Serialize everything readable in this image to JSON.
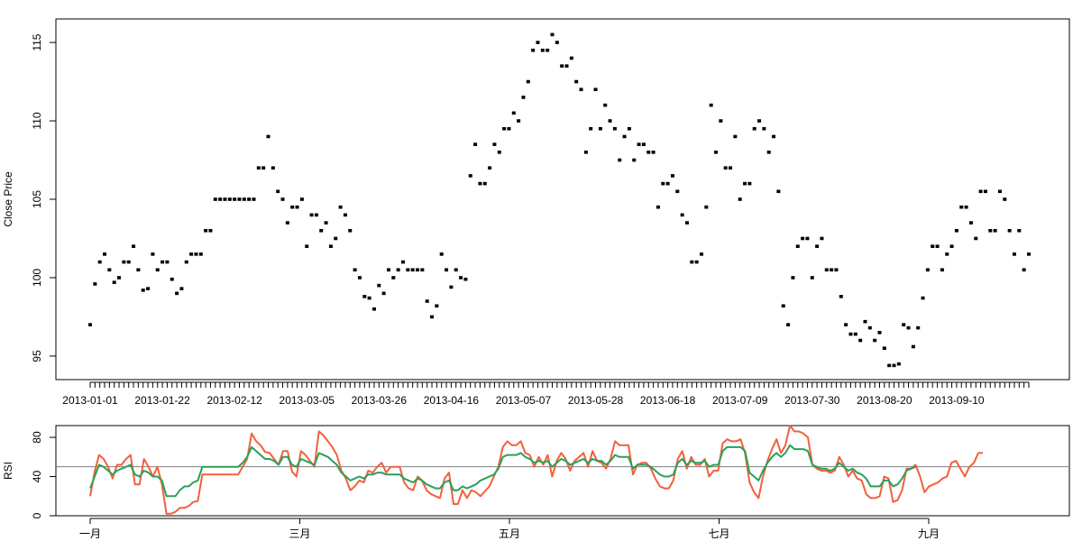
{
  "chart_data": [
    {
      "type": "scatter",
      "ylabel": "Close Price",
      "ylim": [
        93.5,
        116.5
      ],
      "yticks": [
        95,
        100,
        105,
        110,
        115
      ],
      "x_labels": [
        "2013-01-01",
        "2013-01-22",
        "2013-02-12",
        "2013-03-05",
        "2013-03-26",
        "2013-04-16",
        "2013-05-07",
        "2013-05-28",
        "2013-06-18",
        "2013-07-09",
        "2013-07-30",
        "2013-08-20",
        "2013-09-10"
      ],
      "grid": false,
      "series": [
        {
          "color": "#000000",
          "values": [
            97.0,
            99.6,
            101.0,
            101.5,
            100.5,
            99.7,
            100.0,
            101.0,
            101.0,
            102.0,
            100.5,
            99.2,
            99.3,
            101.5,
            100.5,
            101.0,
            101.0,
            99.9,
            99.0,
            99.3,
            101.0,
            101.5,
            101.5,
            101.5,
            103.0,
            103.0,
            105.0,
            105.0,
            105.0,
            105.0,
            105.0,
            105.0,
            105.0,
            105.0,
            105.0,
            107.0,
            107.0,
            109.0,
            107.0,
            105.5,
            105.0,
            103.5,
            104.5,
            104.5,
            105.0,
            102.0,
            104.0,
            104.0,
            103.0,
            103.5,
            102.0,
            102.5,
            104.5,
            104.0,
            103.0,
            100.5,
            100.0,
            98.8,
            98.7,
            98.0,
            99.5,
            99.0,
            100.5,
            100.0,
            100.5,
            101.0,
            100.5,
            100.5,
            100.5,
            100.5,
            98.5,
            97.5,
            98.2,
            101.5,
            100.5,
            99.4,
            100.5,
            100.0,
            99.9,
            106.5,
            108.5,
            106.0,
            106.0,
            107.0,
            108.5,
            108.0,
            109.5,
            109.5,
            110.5,
            110.0,
            111.5,
            112.5,
            114.5,
            115.0,
            114.5,
            114.5,
            115.5,
            115.0,
            113.5,
            113.5,
            114.0,
            112.5,
            112.0,
            108.0,
            109.5,
            112.0,
            109.5,
            111.0,
            110.0,
            109.5,
            107.5,
            109.0,
            109.5,
            107.5,
            108.5,
            108.5,
            108.0,
            108.0,
            104.5,
            106.0,
            106.0,
            106.5,
            105.5,
            104.0,
            103.5,
            101.0,
            101.0,
            101.5,
            104.5,
            111.0,
            108.0,
            110.0,
            107.0,
            107.0,
            109.0,
            105.0,
            106.0,
            106.0,
            109.5,
            110.0,
            109.5,
            108.0,
            109.0,
            105.5,
            98.2,
            97.0,
            100.0,
            102.0,
            102.5,
            102.5,
            100.0,
            102.0,
            102.5,
            100.5,
            100.5,
            100.5,
            98.8,
            97.0,
            96.4,
            96.4,
            96.0,
            97.2,
            96.8,
            96.0,
            96.5,
            95.5,
            94.4,
            94.4,
            94.5,
            97.0,
            96.8,
            95.6,
            96.8,
            98.7,
            100.5,
            102.0,
            102.0,
            100.5,
            101.5,
            102.0,
            103.0,
            104.5,
            104.5,
            103.5,
            102.5,
            105.5,
            105.5,
            103.0,
            103.0,
            105.5,
            105.0,
            103.0,
            101.5,
            103.0,
            100.5,
            101.5
          ]
        }
      ]
    },
    {
      "type": "line",
      "ylabel": "RSI",
      "ylim": [
        0,
        92
      ],
      "yticks": [
        0,
        40,
        80
      ],
      "reference_line": 50,
      "x_labels": [
        "一月",
        "三月",
        "五月",
        "七月",
        "九月"
      ],
      "grid": false,
      "series": [
        {
          "color": "#f2603c",
          "values": [
            20,
            45,
            62,
            58,
            50,
            38,
            52,
            52,
            58,
            62,
            32,
            32,
            58,
            50,
            40,
            50,
            32,
            2,
            2,
            4,
            8,
            8,
            10,
            14,
            15,
            42,
            42,
            42,
            42,
            42,
            42,
            42,
            42,
            42,
            50,
            58,
            84,
            76,
            72,
            65,
            64,
            58,
            52,
            66,
            66,
            45,
            40,
            66,
            62,
            56,
            50,
            86,
            82,
            76,
            70,
            62,
            46,
            38,
            26,
            30,
            36,
            34,
            46,
            44,
            50,
            54,
            44,
            50,
            50,
            50,
            34,
            28,
            26,
            40,
            36,
            26,
            22,
            20,
            18,
            38,
            44,
            12,
            12,
            26,
            18,
            26,
            24,
            20,
            25,
            30,
            40,
            50,
            70,
            76,
            72,
            72,
            76,
            64,
            62,
            50,
            60,
            52,
            62,
            40,
            56,
            64,
            58,
            46,
            56,
            60,
            64,
            50,
            66,
            56,
            54,
            48,
            58,
            76,
            72,
            72,
            72,
            42,
            52,
            54,
            54,
            48,
            38,
            30,
            28,
            28,
            36,
            58,
            66,
            48,
            60,
            52,
            52,
            58,
            40,
            46,
            46,
            74,
            78,
            76,
            76,
            78,
            64,
            34,
            24,
            18,
            40,
            56,
            68,
            78,
            64,
            72,
            92,
            86,
            86,
            84,
            80,
            52,
            48,
            46,
            46,
            44,
            46,
            60,
            52,
            40,
            46,
            38,
            36,
            22,
            18,
            18,
            20,
            40,
            38,
            14,
            16,
            26,
            48,
            48,
            52,
            40,
            24,
            30,
            32,
            34,
            38,
            40,
            54,
            56,
            48,
            40,
            50,
            54,
            64,
            64
          ]
        },
        {
          "color": "#2aa05a",
          "values": [
            28,
            40,
            52,
            50,
            46,
            42,
            46,
            48,
            50,
            52,
            42,
            40,
            46,
            44,
            40,
            40,
            36,
            20,
            20,
            20,
            26,
            30,
            30,
            34,
            36,
            50,
            50,
            50,
            50,
            50,
            50,
            50,
            50,
            50,
            54,
            60,
            70,
            66,
            62,
            58,
            58,
            56,
            52,
            60,
            60,
            52,
            50,
            58,
            56,
            54,
            52,
            64,
            62,
            60,
            56,
            52,
            44,
            40,
            36,
            38,
            40,
            38,
            42,
            42,
            44,
            44,
            42,
            42,
            42,
            42,
            38,
            36,
            34,
            38,
            36,
            32,
            30,
            28,
            28,
            34,
            36,
            26,
            26,
            30,
            28,
            30,
            32,
            36,
            38,
            40,
            42,
            48,
            60,
            62,
            62,
            62,
            64,
            60,
            58,
            54,
            56,
            54,
            56,
            50,
            54,
            58,
            56,
            52,
            54,
            56,
            58,
            54,
            58,
            56,
            56,
            52,
            56,
            62,
            60,
            60,
            60,
            48,
            52,
            52,
            52,
            50,
            46,
            42,
            40,
            40,
            42,
            54,
            58,
            52,
            56,
            54,
            54,
            56,
            50,
            52,
            52,
            66,
            70,
            70,
            70,
            70,
            66,
            44,
            40,
            36,
            46,
            54,
            60,
            64,
            60,
            64,
            72,
            68,
            68,
            68,
            66,
            52,
            50,
            48,
            48,
            46,
            48,
            54,
            50,
            46,
            48,
            44,
            42,
            38,
            30,
            30,
            30,
            36,
            36,
            30,
            32,
            38,
            46,
            48,
            50
          ]
        }
      ]
    }
  ]
}
